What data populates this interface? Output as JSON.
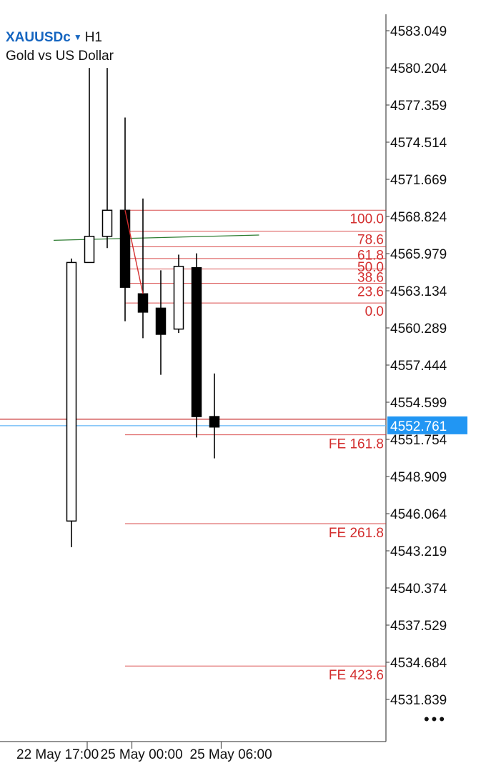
{
  "header": {
    "symbol": "XAUUSDc",
    "dropdown_icon": "caret-down-icon",
    "timeframe": "H1",
    "description": "Gold vs US Dollar"
  },
  "more_button": {
    "label": "•••",
    "icon": "more-dots-icon"
  },
  "colors": {
    "bid_line": "#c62828",
    "ask_line": "#64b5f6",
    "current_price_bg": "#2196f3",
    "fibo": "#d32f2f",
    "trendline": "#2e7d32",
    "candle": "#000000"
  },
  "chart_data": {
    "type": "candlestick",
    "symbol": "XAUUSDc",
    "timeframe": "H1",
    "y_ticks": [
      "4583.049",
      "4580.204",
      "4577.359",
      "4574.514",
      "4571.669",
      "4568.824",
      "4565.979",
      "4563.134",
      "4560.289",
      "4557.444",
      "4554.599",
      "4551.754",
      "4548.909",
      "4546.064",
      "4543.219",
      "4540.374",
      "4537.529",
      "4534.684",
      "4531.839"
    ],
    "ylim": [
      4530.5,
      4584.2
    ],
    "x_tick_labels": [
      {
        "label": "22 May 17:00",
        "at_index": 1
      },
      {
        "label": "25 May 00:00",
        "at_index": 3.5
      },
      {
        "label": "25 May 06:00",
        "at_index": 8.5
      }
    ],
    "candles": [
      {
        "open": 4545.5,
        "high": 4565.6,
        "low": 4543.5,
        "close": 4565.3
      },
      {
        "open": 4565.3,
        "high": 4580.2,
        "low": 4565.3,
        "close": 4567.3
      },
      {
        "open": 4567.3,
        "high": 4580.2,
        "low": 4566.4,
        "close": 4569.3
      },
      {
        "open": 4569.3,
        "high": 4576.4,
        "low": 4560.8,
        "close": 4563.4
      },
      {
        "open": 4562.9,
        "high": 4570.2,
        "low": 4559.5,
        "close": 4561.5
      },
      {
        "open": 4561.8,
        "high": 4564.7,
        "low": 4556.7,
        "close": 4559.8
      },
      {
        "open": 4560.2,
        "high": 4565.9,
        "low": 4559.9,
        "close": 4565.0
      },
      {
        "open": 4564.9,
        "high": 4566.0,
        "low": 4551.9,
        "close": 4553.5
      },
      {
        "open": 4553.5,
        "high": 4556.8,
        "low": 4550.3,
        "close": 4552.7
      }
    ],
    "current_price": "4552.761",
    "bid_price": 4553.3,
    "ask_price": 4552.8,
    "fibo_retracement": [
      {
        "level": "100.0",
        "price": 4569.3
      },
      {
        "level": "78.6",
        "price": 4567.7
      },
      {
        "level": "61.8",
        "price": 4566.5
      },
      {
        "level": "50.0",
        "price": 4565.6
      },
      {
        "level": "38.6",
        "price": 4564.8
      },
      {
        "level": "23.6",
        "price": 4563.7
      },
      {
        "level": "0.0",
        "price": 4562.2
      }
    ],
    "fibo_expansion": [
      {
        "level": "FE 161.8",
        "price": 4552.1
      },
      {
        "level": "FE 261.8",
        "price": 4545.3
      },
      {
        "level": "FE 423.6",
        "price": 4534.4
      }
    ],
    "trendline": {
      "from": {
        "index": -1,
        "price": 4567.0
      },
      "to": {
        "index": 10.5,
        "price": 4567.4
      }
    },
    "fibo_anchor_line": {
      "from": {
        "index": 3,
        "price": 4569.3
      },
      "to": {
        "index": 4,
        "price": 4562.9
      }
    },
    "grid": false
  }
}
